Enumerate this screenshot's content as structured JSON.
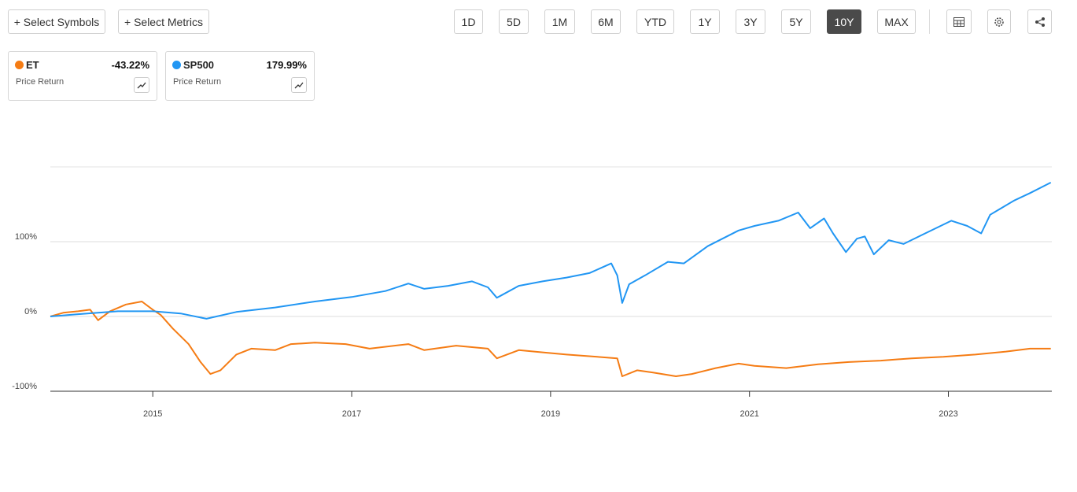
{
  "toolbar": {
    "buttons": [
      "+ Select Symbols",
      "+ Select Metrics"
    ],
    "periods": [
      "1D",
      "5D",
      "1M",
      "6M",
      "YTD",
      "1Y",
      "3Y",
      "5Y",
      "10Y",
      "MAX"
    ],
    "active_period": 8
  },
  "cards": [
    {
      "change": "-43.22%",
      "metric": "Price Return"
    },
    {
      "change": "179.99%",
      "metric": "Price Return"
    }
  ],
  "chart_data": {
    "type": "line",
    "xlim": [
      2013.97,
      2024.04
    ],
    "xticks": [
      2015,
      2017,
      2019,
      2021,
      2023
    ],
    "ylim": [
      -100,
      200
    ],
    "yticks": [
      {
        "value": -100,
        "label": "-100%"
      },
      {
        "value": 0,
        "label": "0%"
      },
      {
        "value": 100,
        "label": "100%"
      }
    ],
    "grid": true,
    "series": [
      {
        "name": "ET",
        "color": "#f57c14",
        "x": [
          2013.97,
          2014.1,
          2014.25,
          2014.37,
          2014.45,
          2014.57,
          2014.73,
          2014.89,
          2015.0,
          2015.08,
          2015.2,
          2015.36,
          2015.48,
          2015.58,
          2015.68,
          2015.84,
          2015.99,
          2016.23,
          2016.39,
          2016.63,
          2016.94,
          2017.18,
          2017.57,
          2017.73,
          2018.05,
          2018.37,
          2018.46,
          2018.68,
          2018.92,
          2019.16,
          2019.47,
          2019.67,
          2019.72,
          2019.87,
          2020.03,
          2020.26,
          2020.42,
          2020.66,
          2020.89,
          2021.05,
          2021.37,
          2021.69,
          2022.0,
          2022.32,
          2022.63,
          2022.95,
          2023.27,
          2023.58,
          2023.82,
          2024.03
        ],
        "values": [
          0,
          5,
          7,
          9,
          -5,
          7,
          16,
          20,
          9,
          2,
          -16,
          -37,
          -61,
          -77,
          -72,
          -51,
          -43,
          -45,
          -37,
          -35,
          -37,
          -43,
          -37,
          -45,
          -39,
          -43,
          -56,
          -45,
          -48,
          -51,
          -54,
          -56,
          -80,
          -72,
          -75,
          -80,
          -77,
          -69,
          -63,
          -66,
          -69,
          -64,
          -61,
          -59,
          -56,
          -54,
          -51,
          -47,
          -43,
          -43
        ]
      },
      {
        "name": "SP500",
        "color": "#2196f3",
        "x": [
          2013.97,
          2014.25,
          2014.65,
          2015.0,
          2015.28,
          2015.54,
          2015.84,
          2016.23,
          2016.63,
          2017.0,
          2017.34,
          2017.57,
          2017.73,
          2017.97,
          2018.21,
          2018.37,
          2018.46,
          2018.68,
          2018.92,
          2019.16,
          2019.39,
          2019.61,
          2019.67,
          2019.72,
          2019.79,
          2019.95,
          2020.18,
          2020.34,
          2020.58,
          2020.89,
          2021.05,
          2021.29,
          2021.49,
          2021.61,
          2021.75,
          2021.84,
          2021.97,
          2022.08,
          2022.16,
          2022.25,
          2022.4,
          2022.55,
          2022.75,
          2023.03,
          2023.19,
          2023.33,
          2023.42,
          2023.66,
          2023.82,
          2024.03
        ],
        "values": [
          0,
          3,
          7,
          7,
          4,
          -3,
          6,
          12,
          20,
          26,
          34,
          44,
          37,
          41,
          47,
          39,
          25,
          41,
          47,
          52,
          58,
          71,
          55,
          18,
          43,
          55,
          73,
          71,
          94,
          115,
          121,
          128,
          139,
          118,
          131,
          111,
          86,
          104,
          107,
          83,
          102,
          97,
          110,
          128,
          121,
          111,
          136,
          155,
          165,
          179
        ]
      }
    ]
  }
}
